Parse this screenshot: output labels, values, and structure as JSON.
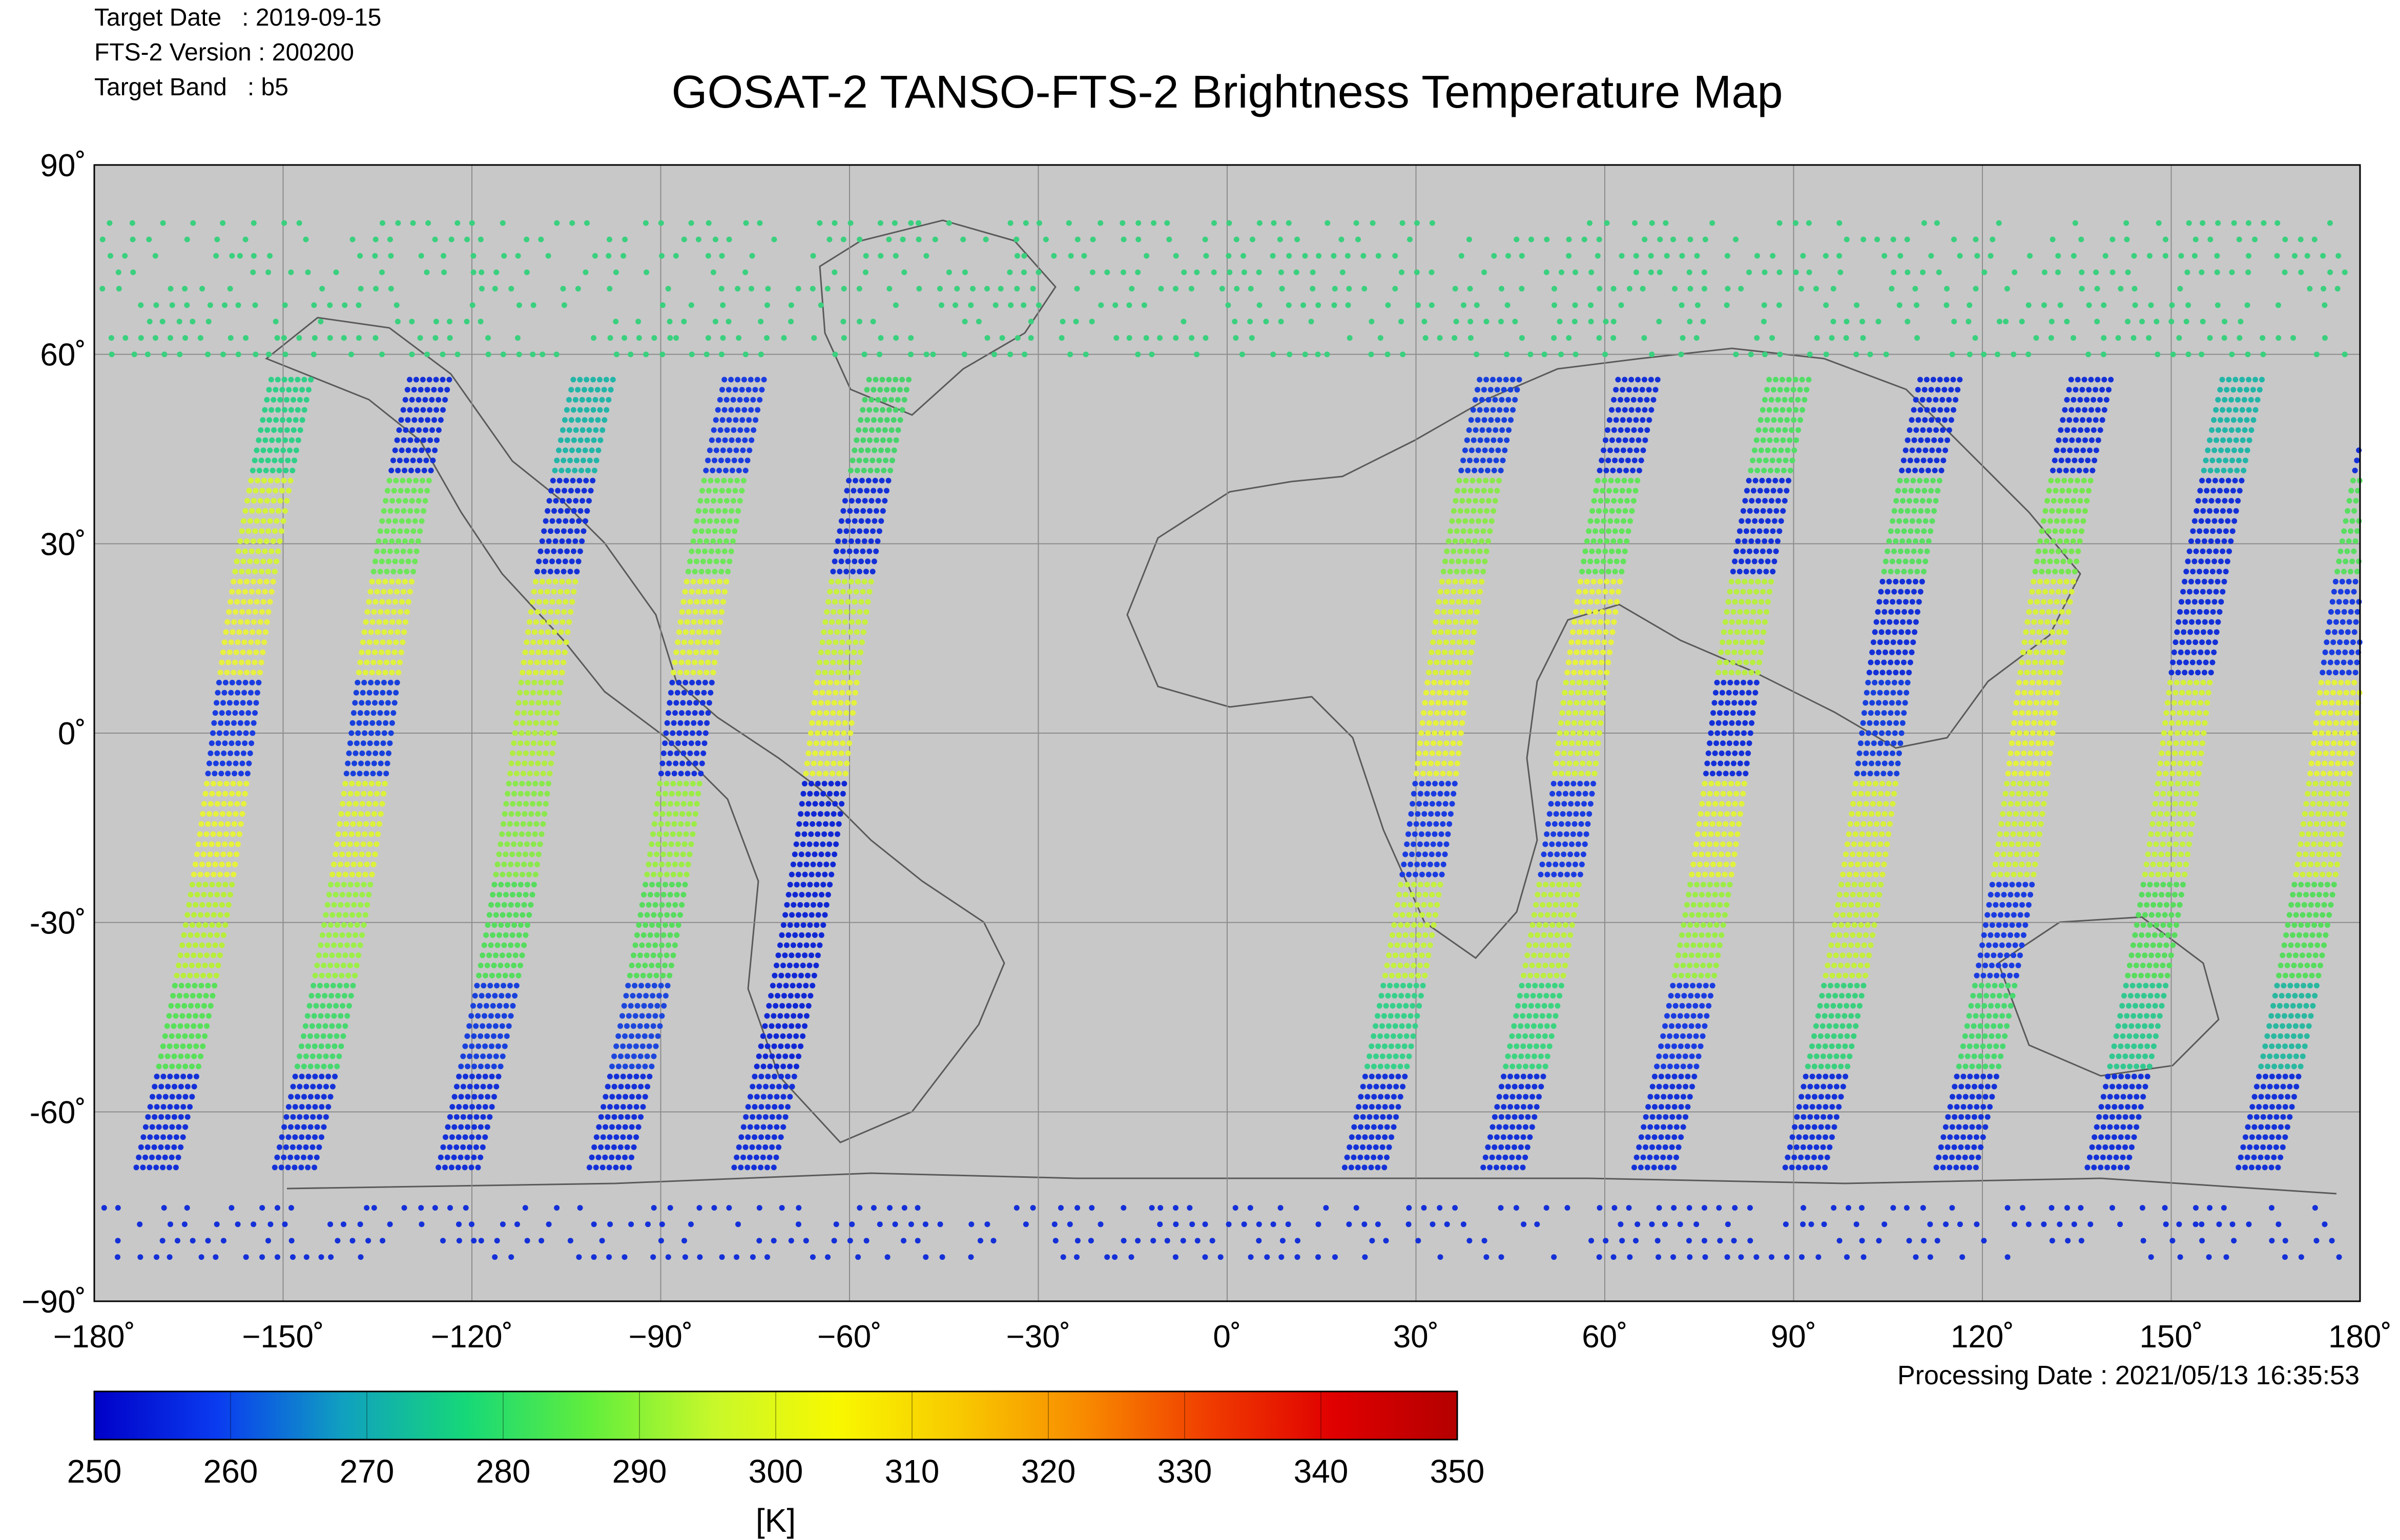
{
  "header": {
    "target_date": "Target Date   : 2019-09-15",
    "version": "FTS-2 Version : 200200",
    "target_band": "Target Band   : b5"
  },
  "title": "GOSAT-2 TANSO-FTS-2 Brightness Temperature Map",
  "processing_date": "Processing Date : 2021/05/13 16:35:53",
  "colors": {
    "map_background": "#c8c8c8",
    "grid": "#8c8c8c",
    "coastline": "#5a5a5a"
  },
  "chart_data": {
    "type": "scatter",
    "title": "GOSAT-2 TANSO-FTS-2 Brightness Temperature Map",
    "xlabel": "",
    "ylabel": "",
    "xlim": [
      -180,
      180
    ],
    "ylim": [
      -90,
      90
    ],
    "x_ticks": [
      "−180˚",
      "−150˚",
      "−120˚",
      "−90˚",
      "−60˚",
      "−30˚",
      "0˚",
      "30˚",
      "60˚",
      "90˚",
      "120˚",
      "150˚",
      "180˚"
    ],
    "y_ticks": [
      "90˚",
      "60˚",
      "30˚",
      "0˚",
      "-30˚",
      "-60˚",
      "−90˚"
    ],
    "grid": true,
    "tracks": [
      {
        "lon_at_equator": -158,
        "color_by_segment": [
          "#2fd088",
          "#d4f23c",
          "#e8f040",
          "#1a3ce0",
          "#e6f23c",
          "#b8ee3a",
          "#58e05a",
          "#1430d8"
        ]
      },
      {
        "lon_at_equator": -136,
        "color_by_segment": [
          "#1430d8",
          "#6ee65a",
          "#e0f23c",
          "#1840dc",
          "#dcf23a",
          "#9cee48",
          "#48d870",
          "#1432d8"
        ]
      },
      {
        "lon_at_equator": -110,
        "color_by_segment": [
          "#22b6a8",
          "#1430d8",
          "#d8f03a",
          "#b0ec42",
          "#8ae84c",
          "#56dc5e",
          "#1840dc",
          "#1430d8"
        ]
      },
      {
        "lon_at_equator": -86,
        "color_by_segment": [
          "#1a3ce0",
          "#6ee65a",
          "#e0f23c",
          "#1632da",
          "#9cec46",
          "#58dc5e",
          "#1c46dc",
          "#1430d8"
        ]
      },
      {
        "lon_at_equator": -63,
        "color_by_segment": [
          "#48d46c",
          "#1430d8",
          "#c8f03e",
          "#e4f23c",
          "#1028d4",
          "#1028d4",
          "#1028d4",
          "#1430d8"
        ]
      },
      {
        "lon_at_equator": 34,
        "color_by_segment": [
          "#1840dc",
          "#8ae84c",
          "#d8f03a",
          "#e6f23c",
          "#1a3ce0",
          "#c4f040",
          "#36d08a",
          "#1432d8"
        ]
      },
      {
        "lon_at_equator": 56,
        "color_by_segment": [
          "#1430d8",
          "#62e45a",
          "#e8f23c",
          "#d4f23c",
          "#1a3ce0",
          "#bcee40",
          "#3cd480",
          "#1432d8"
        ]
      },
      {
        "lon_at_equator": 80,
        "color_by_segment": [
          "#52de66",
          "#1430d8",
          "#b8ee40",
          "#1430d8",
          "#e0f23c",
          "#9cec46",
          "#1a3ce0",
          "#1432d8"
        ]
      },
      {
        "lon_at_equator": 104,
        "color_by_segment": [
          "#1430d8",
          "#5ade62",
          "#1430d8",
          "#1840dc",
          "#d8f03a",
          "#c4ee3e",
          "#3ad07e",
          "#1432d8"
        ]
      },
      {
        "lon_at_equator": 128,
        "color_by_segment": [
          "#1430d8",
          "#76e650",
          "#d8f03a",
          "#e4f23c",
          "#cef03c",
          "#1a3ce0",
          "#48d870",
          "#1432d8"
        ]
      },
      {
        "lon_at_equator": 152,
        "color_by_segment": [
          "#22b6a8",
          "#1430d8",
          "#1430d8",
          "#d4f03a",
          "#c4f040",
          "#58dc5e",
          "#32c890",
          "#1432d8"
        ]
      },
      {
        "lon_at_equator": 176,
        "color_by_segment": [
          "#1430d8",
          "#5ade62",
          "#1a3ce0",
          "#e4f23c",
          "#cef03c",
          "#58dc5e",
          "#2ab8a0",
          "#1432d8"
        ]
      }
    ],
    "polar_bands": [
      {
        "lat_range": [
          60,
          83
        ],
        "dominant_color": "#3ad07e"
      },
      {
        "lat_range": [
          -83,
          -73
        ],
        "dominant_color": "#1430d8"
      }
    ],
    "colorbar": {
      "label": "[K]",
      "min": 250,
      "max": 350,
      "ticks": [
        "250",
        "260",
        "270",
        "280",
        "290",
        "300",
        "310",
        "320",
        "330",
        "340",
        "350"
      ],
      "colors": [
        "#0000c8",
        "#0a3cf0",
        "#10a0c0",
        "#16d878",
        "#62ee3c",
        "#c8f82a",
        "#f8f800",
        "#f8c800",
        "#f88a00",
        "#f03c00",
        "#e00000",
        "#b40000"
      ]
    }
  }
}
